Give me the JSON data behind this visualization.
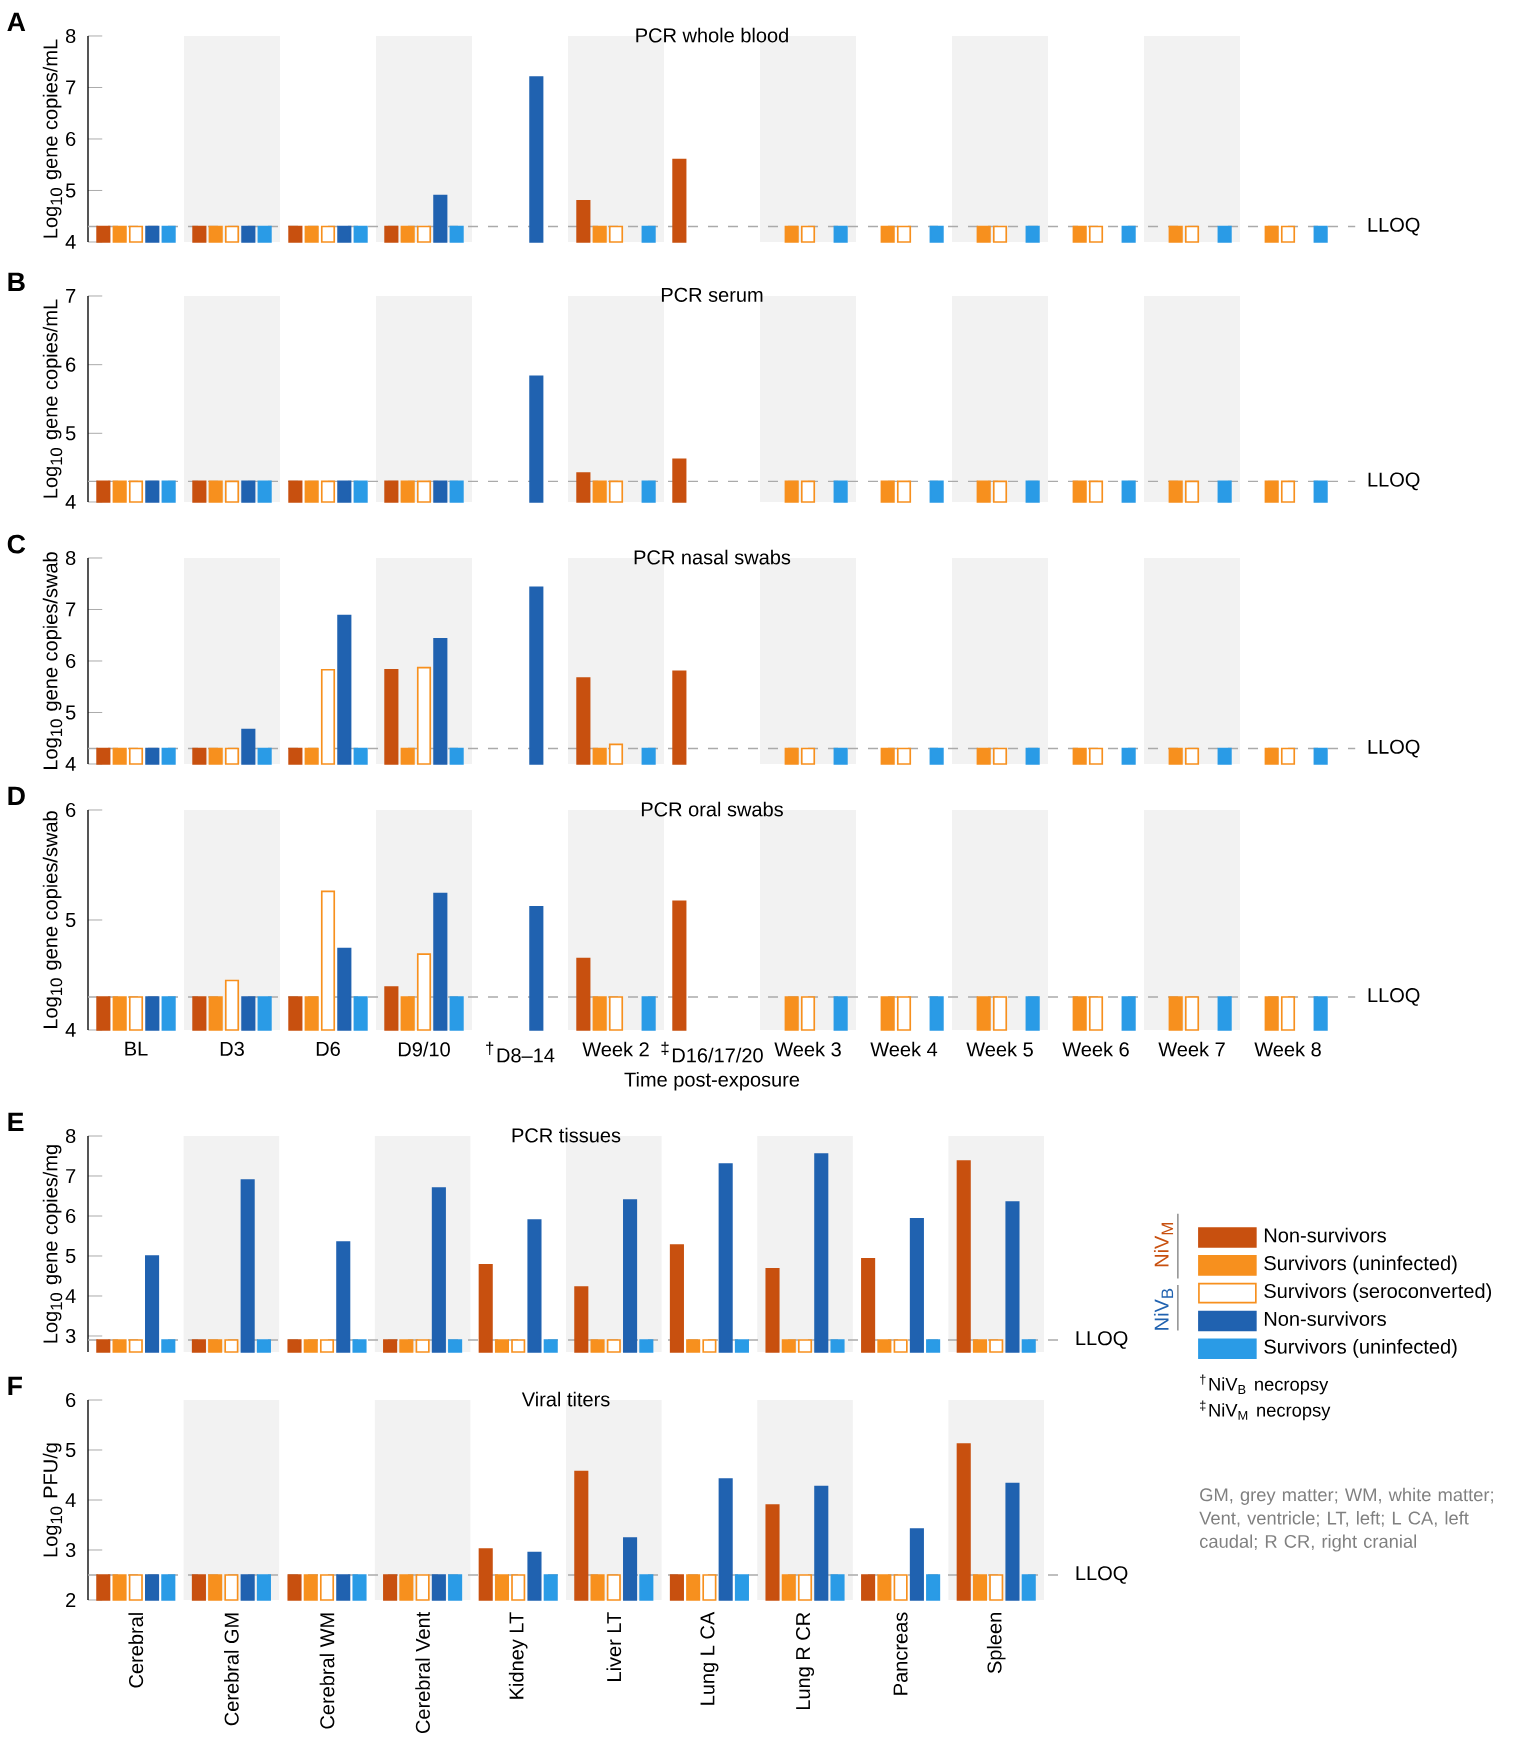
{
  "chart_data": [
    {
      "type": "bar",
      "title": "PCR whole blood",
      "ylabel": "Log$_{10}$ gene copies/mL",
      "annotations": [
        "A"
      ],
      "categories": [
        "BL",
        "D3",
        "D6",
        "D9/10",
        "$^{†}$D8–14",
        "Week 2",
        "$^{‡}$D16/17/20",
        "Week 3",
        "Week 4",
        "Week 5",
        "Week 6",
        "Week 7",
        "Week 8"
      ],
      "ylim": [
        4,
        8
      ],
      "yticks": [
        4,
        5,
        6,
        7,
        8
      ],
      "tick_labels": "y",
      "series": [
        {
          "color": "#c8500f",
          "values": [
            4.3,
            4.3,
            4.3,
            4.3,
            null,
            4.8,
            5.6,
            null,
            null,
            null,
            null,
            null,
            null
          ]
        },
        {
          "color": "#f7901e",
          "values": [
            4.3,
            4.3,
            4.3,
            4.3,
            null,
            4.3,
            null,
            4.3,
            4.3,
            4.3,
            4.3,
            4.3,
            4.3
          ]
        },
        {
          "color": "#f7901e",
          "values": [
            4.3,
            4.3,
            4.3,
            4.3,
            null,
            4.3,
            null,
            4.3,
            4.3,
            4.3,
            4.3,
            4.3,
            4.3
          ]
        },
        {
          "color": "#2062b0",
          "values": [
            4.3,
            4.3,
            4.3,
            4.9,
            7.2,
            null,
            null,
            null,
            null,
            null,
            null,
            null,
            null
          ]
        },
        {
          "color": "#2a9be6",
          "values": [
            4.3,
            4.3,
            4.3,
            4.3,
            null,
            4.3,
            null,
            4.3,
            4.3,
            4.3,
            4.3,
            4.3,
            4.3
          ]
        }
      ],
      "ref_lines": [
        {
          "axis": "y",
          "value": 4.3,
          "label": "LLOQ",
          "color": "#aaaaaa",
          "line_style": "dashed"
        }
      ],
      "bands": [
        {
          "axis": "x",
          "from": "D3",
          "to": "D3",
          "color": "#f2f2f2"
        },
        {
          "axis": "x",
          "from": "D9/10",
          "to": "D9/10",
          "color": "#f2f2f2"
        },
        {
          "axis": "x",
          "from": "Week 2",
          "to": "Week 2",
          "color": "#f2f2f2"
        },
        {
          "axis": "x",
          "from": "Week 3",
          "to": "Week 3",
          "color": "#f2f2f2"
        },
        {
          "axis": "x",
          "from": "Week 5",
          "to": "Week 5",
          "color": "#f2f2f2"
        },
        {
          "axis": "x",
          "from": "Week 7",
          "to": "Week 7",
          "color": "#f2f2f2"
        }
      ]
    },
    {
      "type": "bar",
      "title": "PCR serum",
      "ylabel": "Log$_{10}$ gene copies/mL",
      "annotations": [
        "B"
      ],
      "categories": [
        "BL",
        "D3",
        "D6",
        "D9/10",
        "$^{†}$D8–14",
        "Week 2",
        "$^{‡}$D16/17/20",
        "Week 3",
        "Week 4",
        "Week 5",
        "Week 6",
        "Week 7",
        "Week 8"
      ],
      "ylim": [
        4,
        7
      ],
      "yticks": [
        4,
        5,
        6,
        7
      ],
      "tick_labels": "y",
      "series": [
        {
          "color": "#c8500f",
          "values": [
            4.3,
            4.3,
            4.3,
            4.3,
            null,
            4.42,
            4.62,
            null,
            null,
            null,
            null,
            null,
            null
          ]
        },
        {
          "color": "#f7901e",
          "values": [
            4.3,
            4.3,
            4.3,
            4.3,
            null,
            4.3,
            null,
            4.3,
            4.3,
            4.3,
            4.3,
            4.3,
            4.3
          ]
        },
        {
          "color": "#f7901e",
          "values": [
            4.3,
            4.3,
            4.3,
            4.3,
            null,
            4.3,
            null,
            4.3,
            4.3,
            4.3,
            4.3,
            4.3,
            4.3
          ]
        },
        {
          "color": "#2062b0",
          "values": [
            4.3,
            4.3,
            4.3,
            4.3,
            5.83,
            null,
            null,
            null,
            null,
            null,
            null,
            null,
            null
          ]
        },
        {
          "color": "#2a9be6",
          "values": [
            4.3,
            4.3,
            4.3,
            4.3,
            null,
            4.3,
            null,
            4.3,
            4.3,
            4.3,
            4.3,
            4.3,
            4.3
          ]
        }
      ],
      "ref_lines": [
        {
          "axis": "y",
          "value": 4.3,
          "label": "LLOQ",
          "color": "#aaaaaa",
          "line_style": "dashed"
        }
      ],
      "bands": [
        {
          "axis": "x",
          "from": "D3",
          "to": "D3",
          "color": "#f2f2f2"
        },
        {
          "axis": "x",
          "from": "D9/10",
          "to": "D9/10",
          "color": "#f2f2f2"
        },
        {
          "axis": "x",
          "from": "Week 2",
          "to": "Week 2",
          "color": "#f2f2f2"
        },
        {
          "axis": "x",
          "from": "Week 3",
          "to": "Week 3",
          "color": "#f2f2f2"
        },
        {
          "axis": "x",
          "from": "Week 5",
          "to": "Week 5",
          "color": "#f2f2f2"
        },
        {
          "axis": "x",
          "from": "Week 7",
          "to": "Week 7",
          "color": "#f2f2f2"
        }
      ]
    },
    {
      "type": "bar",
      "title": "PCR nasal swabs",
      "ylabel": "Log$_{10}$ gene copies/swab",
      "annotations": [
        "C"
      ],
      "categories": [
        "BL",
        "D3",
        "D6",
        "D9/10",
        "$^{†}$D8–14",
        "Week 2",
        "$^{‡}$D16/17/20",
        "Week 3",
        "Week 4",
        "Week 5",
        "Week 6",
        "Week 7",
        "Week 8"
      ],
      "ylim": [
        4,
        8
      ],
      "yticks": [
        4,
        5,
        6,
        7,
        8
      ],
      "tick_labels": "y",
      "series": [
        {
          "color": "#c8500f",
          "values": [
            4.3,
            4.3,
            4.3,
            5.83,
            null,
            5.67,
            5.8,
            null,
            null,
            null,
            null,
            null,
            null
          ]
        },
        {
          "color": "#f7901e",
          "values": [
            4.3,
            4.3,
            4.3,
            4.3,
            null,
            4.3,
            null,
            4.3,
            4.3,
            4.3,
            4.3,
            4.3,
            4.3
          ]
        },
        {
          "color": "#f7901e",
          "values": [
            4.3,
            4.3,
            5.83,
            5.87,
            null,
            4.38,
            null,
            4.3,
            4.3,
            4.3,
            4.3,
            4.3,
            4.3
          ]
        },
        {
          "color": "#2062b0",
          "values": [
            4.3,
            4.67,
            6.88,
            6.43,
            7.43,
            null,
            null,
            null,
            null,
            null,
            null,
            null,
            null
          ]
        },
        {
          "color": "#2a9be6",
          "values": [
            4.3,
            4.3,
            4.3,
            4.3,
            null,
            4.3,
            null,
            4.3,
            4.3,
            4.3,
            4.3,
            4.3,
            4.3
          ]
        }
      ],
      "ref_lines": [
        {
          "axis": "y",
          "value": 4.3,
          "label": "LLOQ",
          "color": "#aaaaaa",
          "line_style": "dashed"
        }
      ],
      "bands": [
        {
          "axis": "x",
          "from": "D3",
          "to": "D3",
          "color": "#f2f2f2"
        },
        {
          "axis": "x",
          "from": "D9/10",
          "to": "D9/10",
          "color": "#f2f2f2"
        },
        {
          "axis": "x",
          "from": "Week 2",
          "to": "Week 2",
          "color": "#f2f2f2"
        },
        {
          "axis": "x",
          "from": "Week 3",
          "to": "Week 3",
          "color": "#f2f2f2"
        },
        {
          "axis": "x",
          "from": "Week 5",
          "to": "Week 5",
          "color": "#f2f2f2"
        },
        {
          "axis": "x",
          "from": "Week 7",
          "to": "Week 7",
          "color": "#f2f2f2"
        }
      ]
    },
    {
      "type": "bar",
      "title": "PCR oral swabs",
      "ylabel": "Log$_{10}$ gene copies/swab",
      "xlabel": "Time post-exposure",
      "annotations": [
        "D"
      ],
      "categories": [
        "BL",
        "D3",
        "D6",
        "D9/10",
        "$^{†}$D8–14",
        "Week 2",
        "$^{‡}$D16/17/20",
        "Week 3",
        "Week 4",
        "Week 5",
        "Week 6",
        "Week 7",
        "Week 8"
      ],
      "ylim": [
        4,
        6
      ],
      "yticks": [
        4,
        5,
        6
      ],
      "series": [
        {
          "color": "#c8500f",
          "values": [
            4.3,
            4.3,
            4.3,
            4.39,
            null,
            4.65,
            5.17,
            null,
            null,
            null,
            null,
            null,
            null
          ]
        },
        {
          "color": "#f7901e",
          "values": [
            4.3,
            4.3,
            4.3,
            4.3,
            null,
            4.3,
            null,
            4.3,
            4.3,
            4.3,
            4.3,
            4.3,
            4.3
          ]
        },
        {
          "color": "#f7901e",
          "values": [
            4.3,
            4.45,
            5.26,
            4.69,
            null,
            4.3,
            null,
            4.3,
            4.3,
            4.3,
            4.3,
            4.3,
            4.3
          ]
        },
        {
          "color": "#2062b0",
          "values": [
            4.3,
            4.3,
            4.74,
            5.24,
            5.12,
            null,
            null,
            null,
            null,
            null,
            null,
            null,
            null
          ]
        },
        {
          "color": "#2a9be6",
          "values": [
            4.3,
            4.3,
            4.3,
            4.3,
            null,
            4.3,
            null,
            4.3,
            4.3,
            4.3,
            4.3,
            4.3,
            4.3
          ]
        }
      ],
      "ref_lines": [
        {
          "axis": "y",
          "value": 4.3,
          "label": "LLOQ",
          "color": "#aaaaaa",
          "line_style": "dashed"
        }
      ],
      "bands": [
        {
          "axis": "x",
          "from": "D3",
          "to": "D3",
          "color": "#f2f2f2"
        },
        {
          "axis": "x",
          "from": "D9/10",
          "to": "D9/10",
          "color": "#f2f2f2"
        },
        {
          "axis": "x",
          "from": "Week 2",
          "to": "Week 2",
          "color": "#f2f2f2"
        },
        {
          "axis": "x",
          "from": "Week 3",
          "to": "Week 3",
          "color": "#f2f2f2"
        },
        {
          "axis": "x",
          "from": "Week 5",
          "to": "Week 5",
          "color": "#f2f2f2"
        },
        {
          "axis": "x",
          "from": "Week 7",
          "to": "Week 7",
          "color": "#f2f2f2"
        }
      ]
    },
    {
      "type": "bar",
      "title": "PCR tissues",
      "ylabel": "Log$_{10}$ gene copies/mg",
      "annotations": [
        "E",
        "NiV$_{M}$",
        "NiV$_{B}$",
        "$^{†}$NiV$_{B}$ necropsy",
        "$^{‡}$NiV$_{M}$ necropsy"
      ],
      "categories": [
        "Cerebral",
        "Cerebral GM",
        "Cerebral WM",
        "Cerebral Vent",
        "Kidney LT",
        "Liver LT",
        "Lung L CA",
        "Lung R CR",
        "Pancreas",
        "Spleen"
      ],
      "ylim": [
        2.6,
        8
      ],
      "yticks": [
        3,
        4,
        5,
        6,
        7,
        8
      ],
      "tick_labels": "y",
      "legend": "right",
      "series": [
        {
          "name": "Non-survivors",
          "color": "#c8500f",
          "values": [
            2.9,
            2.9,
            2.9,
            2.9,
            4.78,
            4.22,
            5.27,
            4.68,
            4.93,
            7.37
          ]
        },
        {
          "name": "Survivors (uninfected)",
          "color": "#f7901e",
          "values": [
            2.9,
            2.9,
            2.9,
            2.9,
            2.9,
            2.9,
            2.9,
            2.9,
            2.9,
            2.9
          ]
        },
        {
          "name": "Survivors (seroconverted)",
          "color": "#f7901e",
          "values": [
            2.9,
            2.9,
            2.9,
            2.9,
            2.9,
            2.9,
            2.9,
            2.9,
            2.9,
            2.9
          ]
        },
        {
          "name": "Non-survivors",
          "color": "#2062b0",
          "values": [
            5.0,
            6.9,
            5.35,
            6.7,
            5.9,
            6.4,
            7.3,
            7.55,
            5.93,
            6.35
          ]
        },
        {
          "name": "Survivors (uninfected)",
          "color": "#2a9be6",
          "values": [
            2.9,
            2.9,
            2.9,
            2.9,
            2.9,
            2.9,
            2.9,
            2.9,
            2.9,
            2.9
          ]
        }
      ],
      "ref_lines": [
        {
          "axis": "y",
          "value": 2.9,
          "label": "LLOQ",
          "color": "#aaaaaa",
          "line_style": "dashed"
        }
      ],
      "bands": [
        {
          "axis": "x",
          "from": "Cerebral GM",
          "to": "Cerebral GM",
          "color": "#f2f2f2"
        },
        {
          "axis": "x",
          "from": "Cerebral Vent",
          "to": "Cerebral Vent",
          "color": "#f2f2f2"
        },
        {
          "axis": "x",
          "from": "Liver LT",
          "to": "Liver LT",
          "color": "#f2f2f2"
        },
        {
          "axis": "x",
          "from": "Lung R CR",
          "to": "Lung R CR",
          "color": "#f2f2f2"
        },
        {
          "axis": "x",
          "from": "Spleen",
          "to": "Spleen",
          "color": "#f2f2f2"
        }
      ]
    },
    {
      "type": "bar",
      "title": "Viral titers",
      "ylabel": "Log$_{10}$ PFU/g",
      "annotations": [
        "F",
        "GM, grey matter; WM, white matter; Vent, ventricle; LT, left; L CA, left caudal; R CR, right cranial"
      ],
      "categories": [
        "Cerebral",
        "Cerebral GM",
        "Cerebral WM",
        "Cerebral Vent",
        "Kidney LT",
        "Liver LT",
        "Lung L CA",
        "Lung R CR",
        "Pancreas",
        "Spleen"
      ],
      "ylim": [
        2,
        6
      ],
      "yticks": [
        2,
        3,
        4,
        5,
        6
      ],
      "series": [
        {
          "color": "#c8500f",
          "values": [
            2.5,
            2.5,
            2.5,
            2.5,
            3.02,
            4.57,
            2.5,
            3.9,
            2.5,
            5.12
          ]
        },
        {
          "color": "#f7901e",
          "values": [
            2.5,
            2.5,
            2.5,
            2.5,
            2.5,
            2.5,
            2.5,
            2.5,
            2.5,
            2.5
          ]
        },
        {
          "color": "#f7901e",
          "values": [
            2.5,
            2.5,
            2.5,
            2.5,
            2.5,
            2.5,
            2.5,
            2.5,
            2.5,
            2.5
          ]
        },
        {
          "color": "#2062b0",
          "values": [
            2.5,
            2.5,
            2.5,
            2.5,
            2.95,
            3.24,
            4.42,
            4.27,
            3.42,
            4.33
          ]
        },
        {
          "color": "#2a9be6",
          "values": [
            2.5,
            2.5,
            2.5,
            2.5,
            2.5,
            2.5,
            2.5,
            2.5,
            2.5,
            2.5
          ]
        }
      ],
      "ref_lines": [
        {
          "axis": "y",
          "value": 2.5,
          "label": "LLOQ",
          "color": "#aaaaaa",
          "line_style": "dashed"
        }
      ],
      "bands": [
        {
          "axis": "x",
          "from": "Cerebral GM",
          "to": "Cerebral GM",
          "color": "#f2f2f2"
        },
        {
          "axis": "x",
          "from": "Cerebral Vent",
          "to": "Cerebral Vent",
          "color": "#f2f2f2"
        },
        {
          "axis": "x",
          "from": "Liver LT",
          "to": "Liver LT",
          "color": "#f2f2f2"
        },
        {
          "axis": "x",
          "from": "Lung R CR",
          "to": "Lung R CR",
          "color": "#f2f2f2"
        },
        {
          "axis": "x",
          "from": "Spleen",
          "to": "Spleen",
          "color": "#f2f2f2"
        }
      ]
    }
  ]
}
